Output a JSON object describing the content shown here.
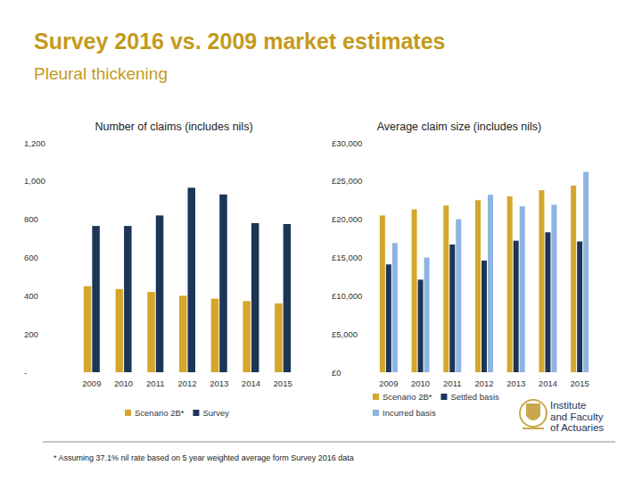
{
  "title": "Survey 2016 vs. 2009 market estimates",
  "subtitle": "Pleural thickening",
  "footnote": "* Assuming 37.1% nil rate based on 5 year weighted average form Survey 2016 data",
  "logo": [
    "Institute",
    "and Faculty",
    "of Actuaries"
  ],
  "chart_data": [
    {
      "type": "bar",
      "title": "Number of claims (includes nils)",
      "categories": [
        "2009",
        "2010",
        "2011",
        "2012",
        "2013",
        "2014",
        "2015"
      ],
      "series": [
        {
          "name": "Scenario 2B*",
          "color": "#d4a62a",
          "values": [
            450,
            435,
            420,
            400,
            385,
            372,
            360
          ]
        },
        {
          "name": "Survey",
          "color": "#1c3558",
          "values": [
            765,
            765,
            820,
            965,
            930,
            780,
            775
          ]
        }
      ],
      "ylim": [
        0,
        1200
      ],
      "yticks": [
        {
          "value": 0,
          "label": "-"
        },
        200,
        400,
        600,
        800,
        {
          "value": 1000,
          "label": "1,000"
        },
        {
          "value": 1200,
          "label": "1,200"
        }
      ],
      "grid": false,
      "legend": "bottom"
    },
    {
      "type": "bar",
      "title": "Average claim size (includes nils)",
      "categories": [
        "2009",
        "2010",
        "2011",
        "2012",
        "2013",
        "2014",
        "2015"
      ],
      "series": [
        {
          "name": "Scenario 2B*",
          "color": "#d4a62a",
          "values": [
            20500,
            21300,
            21800,
            22500,
            23000,
            23800,
            24400
          ]
        },
        {
          "name": "Settled basis",
          "color": "#1c3558",
          "values": [
            14100,
            12100,
            16700,
            14600,
            17200,
            18300,
            17100
          ]
        },
        {
          "name": "Incurred basis",
          "color": "#8db4e2",
          "values": [
            16900,
            15000,
            20000,
            23200,
            21700,
            21900,
            26200
          ]
        }
      ],
      "ylim": [
        0,
        30000
      ],
      "yticks": [
        {
          "value": 0,
          "label": "£0"
        },
        {
          "value": 5000,
          "label": "£5,000"
        },
        {
          "value": 10000,
          "label": "£10,000"
        },
        {
          "value": 15000,
          "label": "£15,000"
        },
        {
          "value": 20000,
          "label": "£20,000"
        },
        {
          "value": 25000,
          "label": "£25,000"
        },
        {
          "value": 30000,
          "label": "£30,000"
        }
      ],
      "grid": false,
      "legend": "bottom"
    }
  ]
}
